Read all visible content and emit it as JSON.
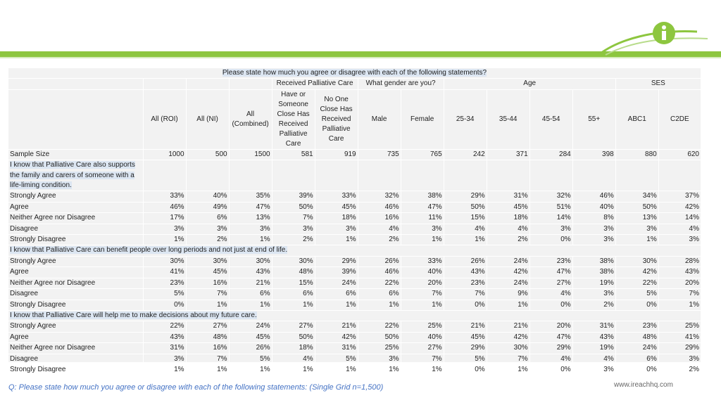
{
  "header": {
    "question": "Please state how much you agree or disagree with each of the following statements?",
    "groups": {
      "palliative": "Received Palliative Care",
      "gender": "What gender are you?",
      "age": "Age",
      "ses": "SES"
    },
    "columns": [
      "All (ROI)",
      "All (NI)",
      "All (Combined)",
      "Have or Someone Close Has Received Palliative Care",
      "No One Close Has Received Palliative Care",
      "Male",
      "Female",
      "25-34",
      "35-44",
      "45-54",
      "55+",
      "ABC1",
      "C2DE"
    ]
  },
  "sample_size": {
    "label": "Sample Size",
    "values": [
      "1000",
      "500",
      "1500",
      "581",
      "919",
      "735",
      "765",
      "242",
      "371",
      "284",
      "398",
      "880",
      "620"
    ]
  },
  "sections": [
    {
      "title": "I know that Palliative Care also supports the family and carers of someone with a life-liming condition.",
      "rows": [
        {
          "label": "Strongly Agree",
          "values": [
            "33%",
            "40%",
            "35%",
            "39%",
            "33%",
            "32%",
            "38%",
            "29%",
            "31%",
            "32%",
            "46%",
            "34%",
            "37%"
          ]
        },
        {
          "label": "Agree",
          "values": [
            "46%",
            "49%",
            "47%",
            "50%",
            "45%",
            "46%",
            "47%",
            "50%",
            "45%",
            "51%",
            "40%",
            "50%",
            "42%"
          ]
        },
        {
          "label": "Neither Agree nor Disagree",
          "values": [
            "17%",
            "6%",
            "13%",
            "7%",
            "18%",
            "16%",
            "11%",
            "15%",
            "18%",
            "14%",
            "8%",
            "13%",
            "14%"
          ]
        },
        {
          "label": "Disagree",
          "values": [
            "3%",
            "3%",
            "3%",
            "3%",
            "3%",
            "4%",
            "3%",
            "4%",
            "4%",
            "3%",
            "3%",
            "3%",
            "4%"
          ]
        },
        {
          "label": "Strongly Disagree",
          "values": [
            "1%",
            "2%",
            "1%",
            "2%",
            "1%",
            "2%",
            "1%",
            "1%",
            "2%",
            "0%",
            "3%",
            "1%",
            "3%"
          ]
        }
      ]
    },
    {
      "title": "I know that Palliative Care can benefit people over long periods and not just at end of life.",
      "rows": [
        {
          "label": "Strongly Agree",
          "values": [
            "30%",
            "30%",
            "30%",
            "30%",
            "29%",
            "26%",
            "33%",
            "26%",
            "24%",
            "23%",
            "38%",
            "30%",
            "28%"
          ]
        },
        {
          "label": "Agree",
          "values": [
            "41%",
            "45%",
            "43%",
            "48%",
            "39%",
            "46%",
            "40%",
            "43%",
            "42%",
            "47%",
            "38%",
            "42%",
            "43%"
          ]
        },
        {
          "label": "Neither Agree nor Disagree",
          "values": [
            "23%",
            "16%",
            "21%",
            "15%",
            "24%",
            "22%",
            "20%",
            "23%",
            "24%",
            "27%",
            "19%",
            "22%",
            "20%"
          ]
        },
        {
          "label": "Disagree",
          "values": [
            "5%",
            "7%",
            "6%",
            "6%",
            "6%",
            "6%",
            "7%",
            "7%",
            "9%",
            "4%",
            "3%",
            "5%",
            "7%"
          ]
        },
        {
          "label": "Strongly Disagree",
          "values": [
            "0%",
            "1%",
            "1%",
            "1%",
            "1%",
            "1%",
            "1%",
            "0%",
            "1%",
            "0%",
            "2%",
            "0%",
            "1%"
          ]
        }
      ]
    },
    {
      "title": "I know that Palliative Care will help me to make decisions about my future care.",
      "rows": [
        {
          "label": "Strongly Agree",
          "values": [
            "22%",
            "27%",
            "24%",
            "27%",
            "21%",
            "22%",
            "25%",
            "21%",
            "21%",
            "20%",
            "31%",
            "23%",
            "25%"
          ]
        },
        {
          "label": "Agree",
          "values": [
            "43%",
            "48%",
            "45%",
            "50%",
            "42%",
            "50%",
            "40%",
            "45%",
            "42%",
            "47%",
            "43%",
            "48%",
            "41%"
          ]
        },
        {
          "label": "Neither Agree nor Disagree",
          "values": [
            "31%",
            "16%",
            "26%",
            "18%",
            "31%",
            "25%",
            "27%",
            "29%",
            "30%",
            "29%",
            "19%",
            "24%",
            "29%"
          ]
        },
        {
          "label": "Disagree",
          "values": [
            "3%",
            "7%",
            "5%",
            "4%",
            "5%",
            "3%",
            "7%",
            "5%",
            "7%",
            "4%",
            "4%",
            "6%",
            "3%"
          ]
        },
        {
          "label": "Strongly Disagree",
          "values": [
            "1%",
            "1%",
            "1%",
            "1%",
            "1%",
            "1%",
            "1%",
            "0%",
            "1%",
            "0%",
            "3%",
            "0%",
            "2%"
          ]
        }
      ]
    }
  ],
  "footer": {
    "note": "Q: Please state how much you agree or disagree with each of the following statements: (Single Grid n=1,500)",
    "url": "www.ireachhq.com"
  },
  "brand": {
    "accent": "#8dc63f",
    "highlight": "#dce6f2",
    "footer_text": "#4472c4"
  }
}
